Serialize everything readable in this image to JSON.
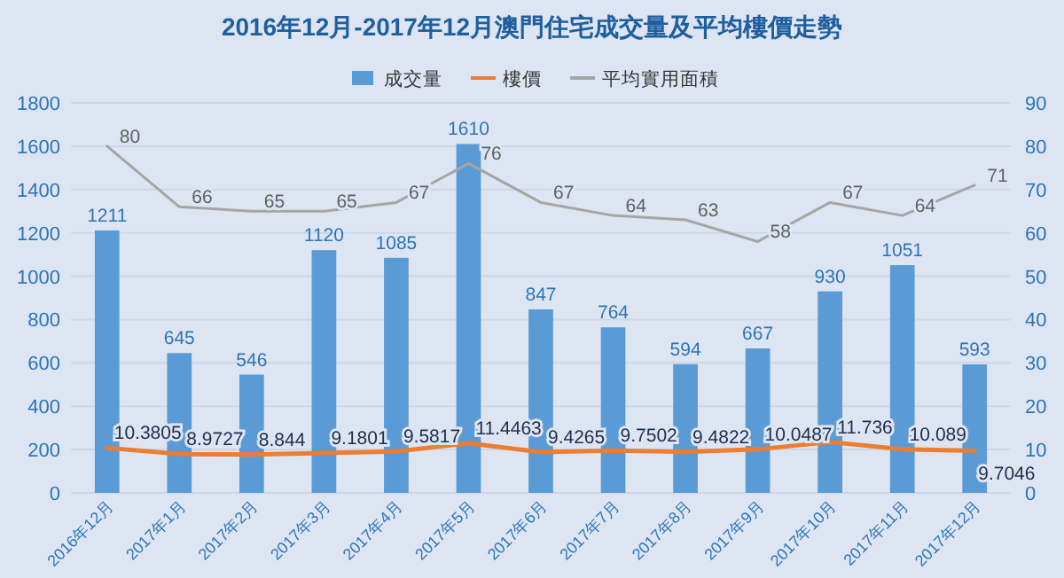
{
  "chart_data": {
    "type": "bar",
    "title": "2016年12月-2017年12月澳門住宅成交量及平均樓價走勢",
    "categories": [
      "2016年12月",
      "2017年1月",
      "2017年2月",
      "2017年3月",
      "2017年4月",
      "2017年5月",
      "2017年6月",
      "2017年7月",
      "2017年8月",
      "2017年9月",
      "2017年10月",
      "2017年11月",
      "2017年12月"
    ],
    "series": [
      {
        "name": "成交量",
        "color": "#5b9bd5",
        "values": [
          1211,
          645,
          546,
          1120,
          1085,
          1610,
          847,
          764,
          594,
          667,
          930,
          1051,
          593
        ]
      },
      {
        "name": "樓價",
        "type": "line",
        "axis": "y2",
        "color": "#ed7d31",
        "values": [
          10.3805,
          8.9727,
          8.844,
          9.1801,
          9.5817,
          11.4463,
          9.4265,
          9.7502,
          9.4822,
          10.0487,
          11.736,
          10.089,
          9.7046
        ]
      },
      {
        "name": "平均實用面積",
        "type": "line",
        "axis": "y2",
        "color": "#a5a5a5",
        "values": [
          80,
          66,
          65,
          65,
          67,
          76,
          67,
          64,
          63,
          58,
          67,
          64,
          71
        ]
      }
    ],
    "ylim": [
      0,
      1800
    ],
    "yticks": [
      0,
      200,
      400,
      600,
      800,
      1000,
      1200,
      1400,
      1600,
      1800
    ],
    "y2lim": [
      0,
      90
    ],
    "y2ticks": [
      0,
      10,
      20,
      30,
      40,
      50,
      60,
      70,
      80,
      90
    ],
    "data_labels": true,
    "legend": "top",
    "grid": "y"
  }
}
